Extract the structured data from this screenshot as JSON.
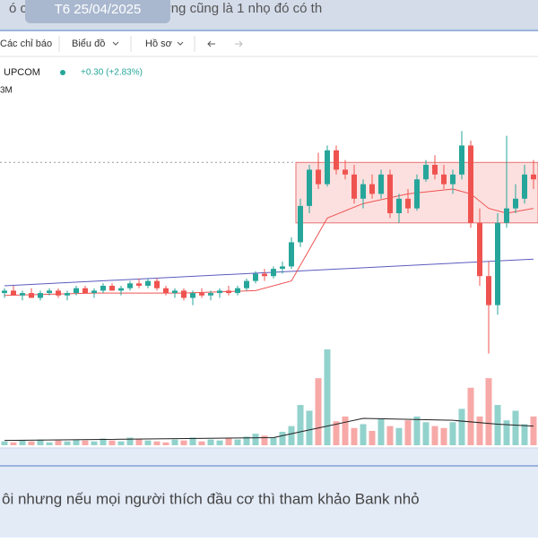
{
  "post": {
    "top_text": "ó cũng ... do cũng vậy, nhưng cũng là 1 nhọ đó có th",
    "date_badge": "T6 25/04/2025",
    "bottom_text": "ôi nhưng nếu mọi người thích đầu cơ thì tham khảo Bank nhỏ"
  },
  "toolbar": {
    "items": [
      "Các chỉ báo",
      "Biểu đồ",
      "Hồ sơ"
    ]
  },
  "chart_data": {
    "type": "candlestick",
    "symbol": "UPCOM",
    "change": "+0.30 (+2.83%)",
    "interval": "3M",
    "up_color": "#26a69a",
    "down_color": "#ef5350",
    "ylim": [
      0,
      100
    ],
    "open": [
      27,
      28,
      26,
      27,
      25,
      27,
      28,
      26,
      27,
      29,
      27,
      28,
      30,
      28,
      29,
      31,
      30,
      32,
      29,
      27,
      28,
      25,
      27,
      26,
      27,
      28,
      27,
      29,
      32,
      35,
      34,
      37,
      38,
      48,
      63,
      78,
      72,
      86,
      78,
      76,
      66,
      72,
      68,
      76,
      60,
      66,
      62,
      74,
      80,
      76,
      72,
      76,
      88,
      56,
      34,
      22,
      56,
      62,
      66,
      76
    ],
    "high": [
      29,
      30,
      28,
      29,
      28,
      29,
      29,
      28,
      30,
      30,
      29,
      31,
      31,
      30,
      32,
      33,
      33,
      33,
      30,
      29,
      29,
      28,
      29,
      28,
      29,
      30,
      30,
      33,
      36,
      37,
      38,
      40,
      50,
      66,
      80,
      85,
      88,
      88,
      82,
      80,
      74,
      76,
      78,
      78,
      68,
      70,
      76,
      82,
      84,
      80,
      78,
      94,
      90,
      62,
      40,
      60,
      92,
      72,
      80,
      82
    ],
    "low": [
      25,
      26,
      24,
      25,
      24,
      26,
      25,
      24,
      26,
      27,
      25,
      27,
      28,
      26,
      28,
      29,
      29,
      28,
      26,
      25,
      24,
      22,
      25,
      24,
      25,
      26,
      26,
      28,
      31,
      32,
      33,
      35,
      37,
      46,
      60,
      70,
      71,
      76,
      74,
      64,
      62,
      66,
      66,
      58,
      56,
      60,
      61,
      73,
      74,
      70,
      68,
      74,
      54,
      30,
      2,
      18,
      54,
      60,
      64,
      70
    ],
    "close": [
      28,
      26,
      27,
      25,
      27,
      28,
      26,
      27,
      29,
      27,
      28,
      30,
      28,
      29,
      31,
      30,
      32,
      29,
      27,
      28,
      25,
      27,
      26,
      27,
      28,
      27,
      29,
      32,
      35,
      34,
      37,
      38,
      48,
      63,
      78,
      72,
      86,
      78,
      76,
      66,
      72,
      68,
      76,
      60,
      66,
      62,
      74,
      80,
      76,
      72,
      76,
      88,
      56,
      34,
      22,
      56,
      62,
      66,
      76,
      74
    ],
    "volume": {
      "ylim": [
        0,
        100
      ],
      "values": [
        4,
        3,
        5,
        4,
        6,
        3,
        5,
        4,
        6,
        5,
        4,
        7,
        5,
        4,
        8,
        6,
        5,
        4,
        3,
        6,
        5,
        8,
        4,
        6,
        5,
        7,
        6,
        9,
        12,
        10,
        8,
        14,
        20,
        42,
        36,
        70,
        100,
        25,
        30,
        18,
        22,
        15,
        28,
        20,
        18,
        26,
        30,
        24,
        20,
        18,
        24,
        38,
        60,
        30,
        70,
        42,
        26,
        36,
        22,
        30
      ]
    },
    "lines": [
      {
        "color": "#5b5bbf",
        "x": [
          0,
          59
        ],
        "values": [
          30,
          41
        ]
      },
      {
        "color": "#ef5350",
        "x": [
          0,
          10,
          20,
          28,
          32,
          34,
          36,
          40,
          45,
          50,
          52,
          54,
          56,
          59
        ],
        "values": [
          26,
          27,
          27,
          28,
          32,
          45,
          58,
          64,
          68,
          70,
          68,
          62,
          60,
          62
        ]
      }
    ],
    "volume_line": {
      "color": "#222222",
      "x": [
        0,
        30,
        33,
        40,
        50,
        55,
        59
      ],
      "values": [
        5,
        8,
        14,
        28,
        26,
        22,
        20
      ]
    },
    "range_box": {
      "from": 33,
      "to": 59,
      "low": 56,
      "high": 81
    }
  }
}
